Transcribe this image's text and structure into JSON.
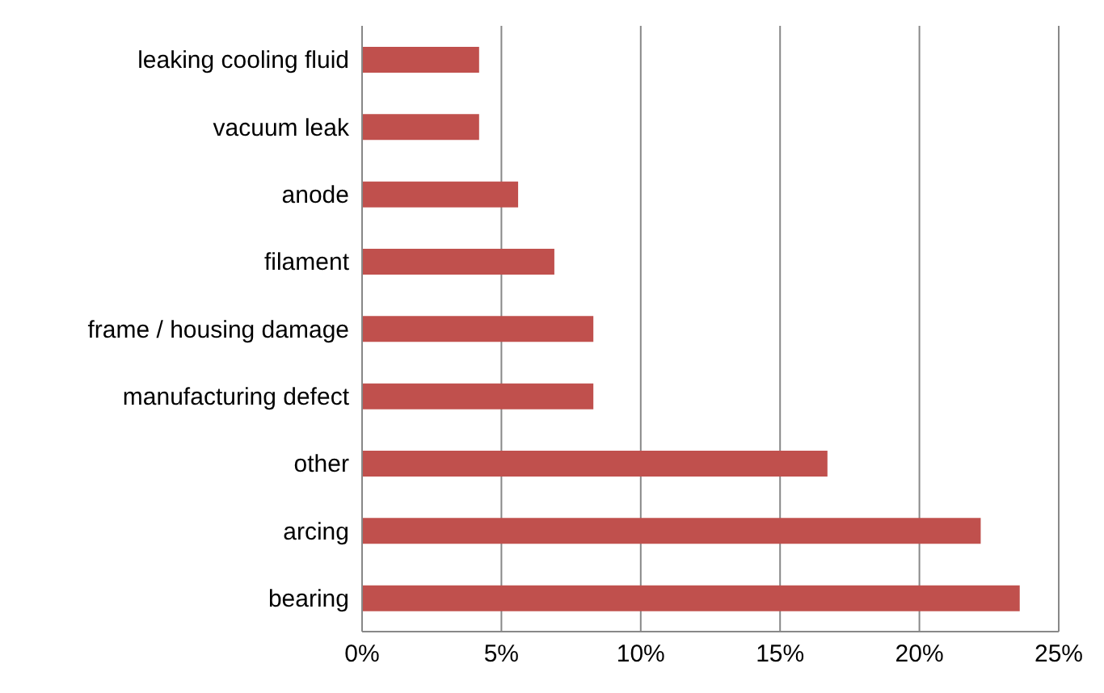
{
  "chart_data": {
    "type": "bar",
    "orientation": "horizontal",
    "categories": [
      "leaking cooling fluid",
      "vacuum leak",
      "anode",
      "filament",
      "frame / housing damage",
      "manufacturing defect",
      "other",
      "arcing",
      "bearing"
    ],
    "values": [
      4.2,
      4.2,
      5.6,
      6.9,
      8.3,
      8.3,
      16.7,
      22.2,
      23.6
    ],
    "color": "#c0504d",
    "xlim": [
      0,
      25
    ],
    "xticks": [
      {
        "value": 0,
        "label": "0%"
      },
      {
        "value": 5,
        "label": "5%"
      },
      {
        "value": 10,
        "label": "10%"
      },
      {
        "value": 15,
        "label": "15%"
      },
      {
        "value": 20,
        "label": "20%"
      },
      {
        "value": 25,
        "label": "25%"
      }
    ],
    "grid": "x",
    "legend": false
  }
}
